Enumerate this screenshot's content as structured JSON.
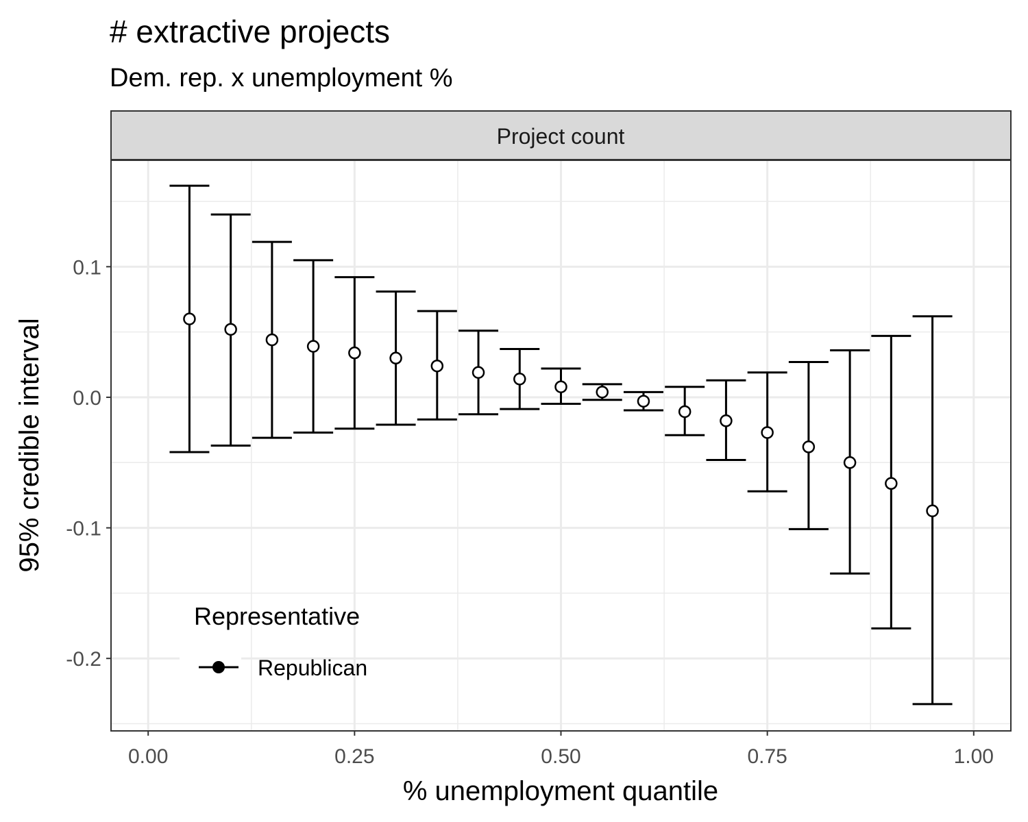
{
  "chart_data": {
    "type": "errorbar",
    "title": "# extractive projects",
    "subtitle": "Dem. rep. x unemployment %",
    "facet_label": "Project count",
    "xlabel": "% unemployment quantile",
    "ylabel": "95% credible interval",
    "xlim": [
      -0.045,
      1.045
    ],
    "ylim": [
      -0.2555,
      0.1815
    ],
    "x_ticks": [
      0.0,
      0.25,
      0.5,
      0.75,
      1.0
    ],
    "x_tick_labels": [
      "0.00",
      "0.25",
      "0.50",
      "0.75",
      "1.00"
    ],
    "y_ticks": [
      -0.2,
      -0.1,
      0.0,
      0.1
    ],
    "y_tick_labels": [
      "-0.2",
      "-0.1",
      "0.0",
      "0.1"
    ],
    "grid": true,
    "legend": {
      "title": "Representative",
      "placement": "bottom-left inside",
      "entries": [
        "Republican"
      ]
    },
    "series": [
      {
        "name": "Republican",
        "x": [
          0.05,
          0.1,
          0.15,
          0.2,
          0.25,
          0.3,
          0.35,
          0.4,
          0.45,
          0.5,
          0.55,
          0.6,
          0.65,
          0.7,
          0.75,
          0.8,
          0.85,
          0.9,
          0.95
        ],
        "estimate": [
          0.06,
          0.052,
          0.044,
          0.039,
          0.034,
          0.03,
          0.024,
          0.019,
          0.014,
          0.008,
          0.004,
          -0.003,
          -0.011,
          -0.018,
          -0.027,
          -0.038,
          -0.05,
          -0.066,
          -0.087
        ],
        "lower": [
          -0.042,
          -0.037,
          -0.031,
          -0.027,
          -0.024,
          -0.021,
          -0.017,
          -0.013,
          -0.009,
          -0.005,
          -0.002,
          -0.01,
          -0.029,
          -0.048,
          -0.072,
          -0.101,
          -0.135,
          -0.177,
          -0.235
        ],
        "upper": [
          0.162,
          0.14,
          0.119,
          0.105,
          0.092,
          0.081,
          0.066,
          0.051,
          0.037,
          0.022,
          0.01,
          0.004,
          0.008,
          0.013,
          0.019,
          0.027,
          0.036,
          0.047,
          0.062
        ]
      }
    ]
  }
}
